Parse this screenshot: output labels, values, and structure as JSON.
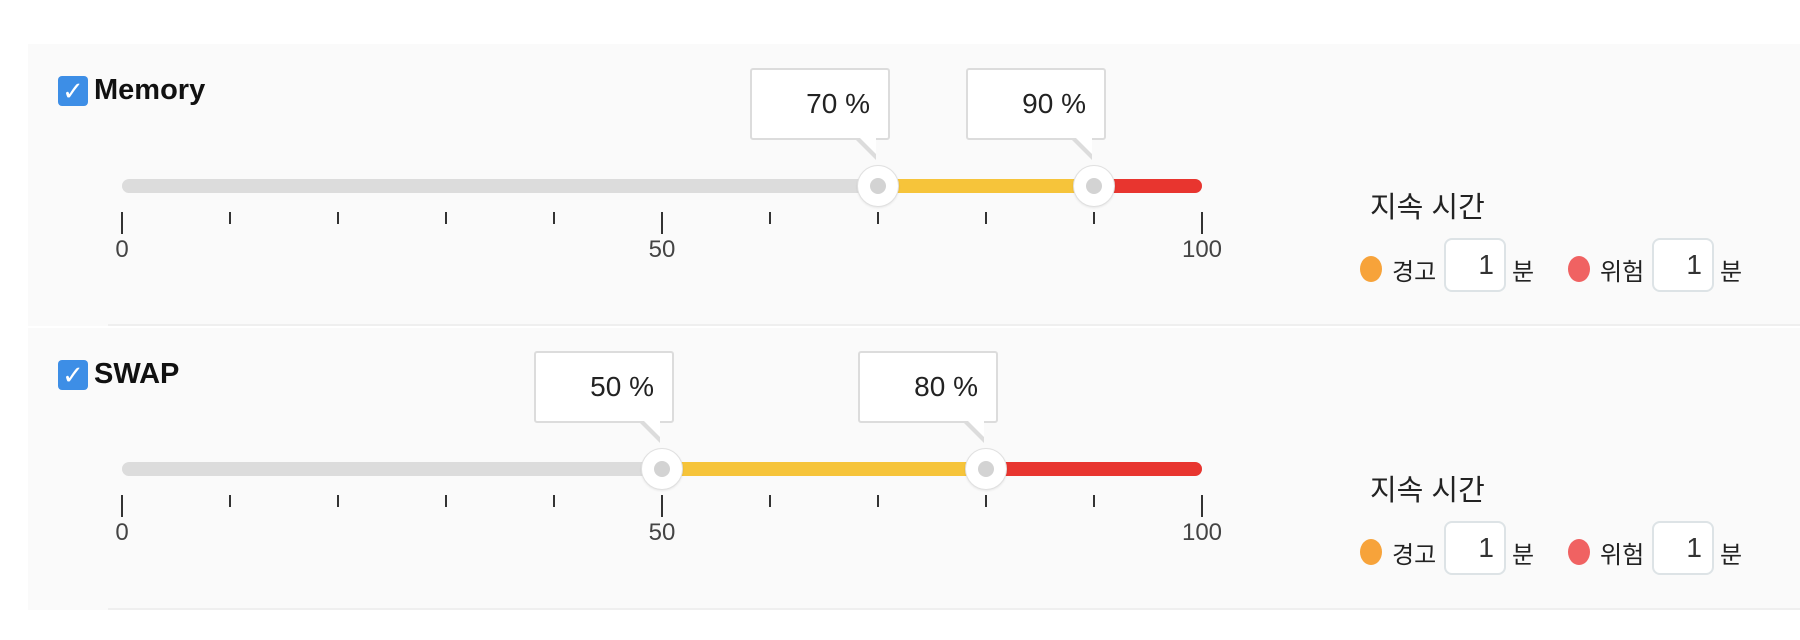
{
  "colors": {
    "checkbox": "#3d8ee6",
    "track": "#dcdcdc",
    "warning": "#f6c43a",
    "critical": "#e8352f",
    "warning_dot": "#f7a33a",
    "critical_dot": "#f06262"
  },
  "icons": {
    "checkbox": "check-icon",
    "handle": "slider-handle-icon"
  },
  "sections": [
    {
      "title": "Memory",
      "checked": true,
      "slider": {
        "min": 0,
        "max": 100,
        "warning_value": 70,
        "critical_value": 90,
        "warning_label": "70 %",
        "critical_label": "90 %"
      },
      "tick_labels": [
        "0",
        "50",
        "100"
      ],
      "duration": {
        "title": "지속 시간",
        "warning_label": "경고",
        "warning_value": "1",
        "critical_label": "위험",
        "critical_value": "1",
        "unit": "분"
      }
    },
    {
      "title": "SWAP",
      "checked": true,
      "slider": {
        "min": 0,
        "max": 100,
        "warning_value": 50,
        "critical_value": 80,
        "warning_label": "50 %",
        "critical_label": "80 %"
      },
      "tick_labels": [
        "0",
        "50",
        "100"
      ],
      "duration": {
        "title": "지속 시간",
        "warning_label": "경고",
        "warning_value": "1",
        "critical_label": "위험",
        "critical_value": "1",
        "unit": "분"
      }
    }
  ]
}
